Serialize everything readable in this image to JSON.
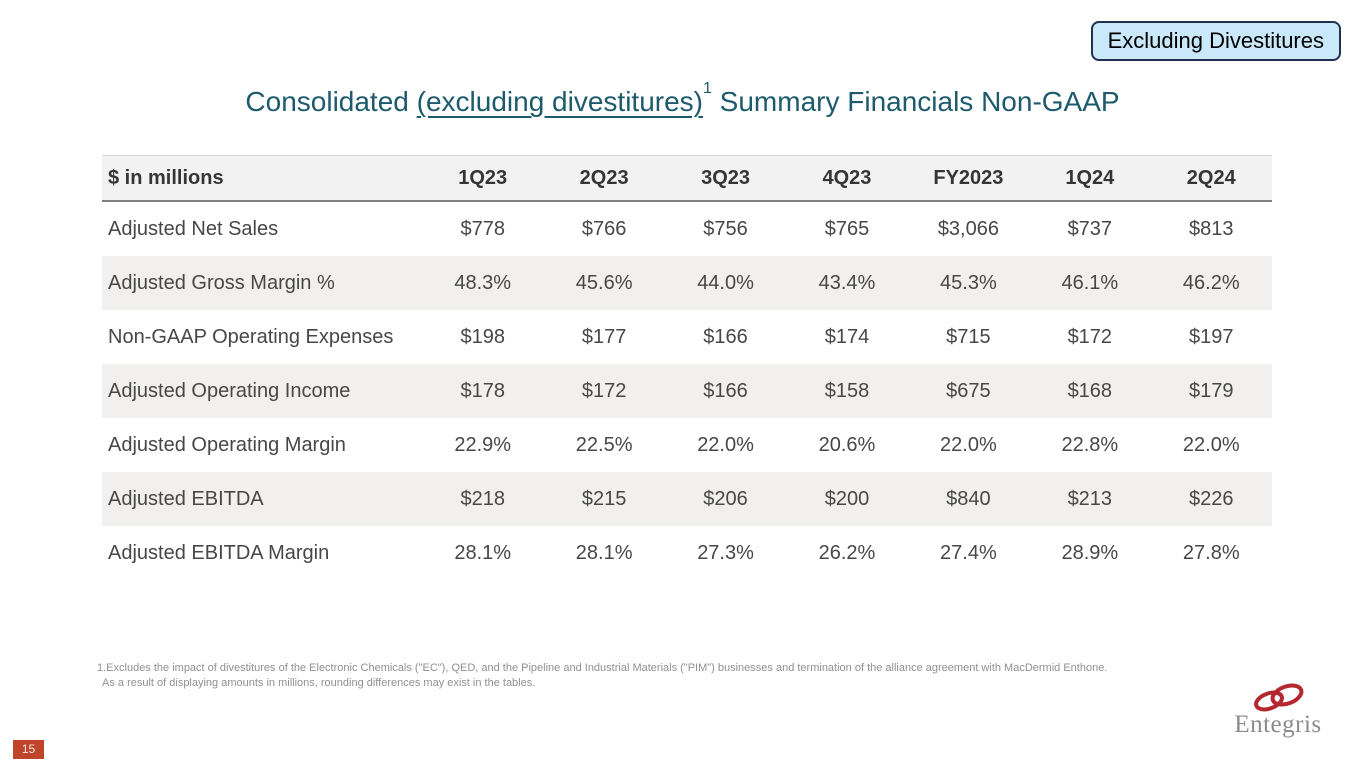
{
  "badge": {
    "label": "Excluding Divestitures"
  },
  "title": {
    "prefix": "Consolidated ",
    "underlined": "(excluding divestitures)",
    "superscript": "1",
    "suffix": " Summary Financials Non-GAAP"
  },
  "table": {
    "columns": [
      "$ in millions",
      "1Q23",
      "2Q23",
      "3Q23",
      "4Q23",
      "FY2023",
      "1Q24",
      "2Q24"
    ],
    "rows": [
      {
        "label": "Adjusted Net Sales",
        "values": [
          "$778",
          "$766",
          "$756",
          "$765",
          "$3,066",
          "$737",
          "$813"
        ]
      },
      {
        "label": "Adjusted Gross Margin %",
        "values": [
          "48.3%",
          "45.6%",
          "44.0%",
          "43.4%",
          "45.3%",
          "46.1%",
          "46.2%"
        ]
      },
      {
        "label": "Non-GAAP Operating Expenses",
        "values": [
          "$198",
          "$177",
          "$166",
          "$174",
          "$715",
          "$172",
          "$197"
        ]
      },
      {
        "label": "Adjusted Operating Income",
        "values": [
          "$178",
          "$172",
          "$166",
          "$158",
          "$675",
          "$168",
          "$179"
        ]
      },
      {
        "label": "Adjusted Operating Margin",
        "values": [
          "22.9%",
          "22.5%",
          "22.0%",
          "20.6%",
          "22.0%",
          "22.8%",
          "22.0%"
        ]
      },
      {
        "label": "Adjusted EBITDA",
        "values": [
          "$218",
          "$215",
          "$206",
          "$200",
          "$840",
          "$213",
          "$226"
        ]
      },
      {
        "label": "Adjusted EBITDA Margin",
        "values": [
          "28.1%",
          "28.1%",
          "27.3%",
          "26.2%",
          "27.4%",
          "28.9%",
          "27.8%"
        ]
      }
    ]
  },
  "footnote": {
    "line1": "1.Excludes the impact of divestitures of the Electronic Chemicals (\"EC\"), QED, and the Pipeline and Industrial Materials (\"PIM\") businesses and termination of the alliance agreement with MacDermid Enthone.",
    "line2": "As a result of displaying amounts in millions, rounding differences may exist in the tables."
  },
  "logo": {
    "text": "Entegris"
  },
  "page_number": "15",
  "colors": {
    "title_teal": "#1d5a6c",
    "badge_fill": "#c9e8fa",
    "badge_border": "#20304f",
    "header_bg": "#f2f2f2",
    "stripe_bg": "#f1f0ee",
    "body_text": "#474747",
    "footnote_gray": "#909090",
    "page_box_red": "#c0442a",
    "logo_red": "#b3292f",
    "logo_gray": "#8b8b8b"
  }
}
